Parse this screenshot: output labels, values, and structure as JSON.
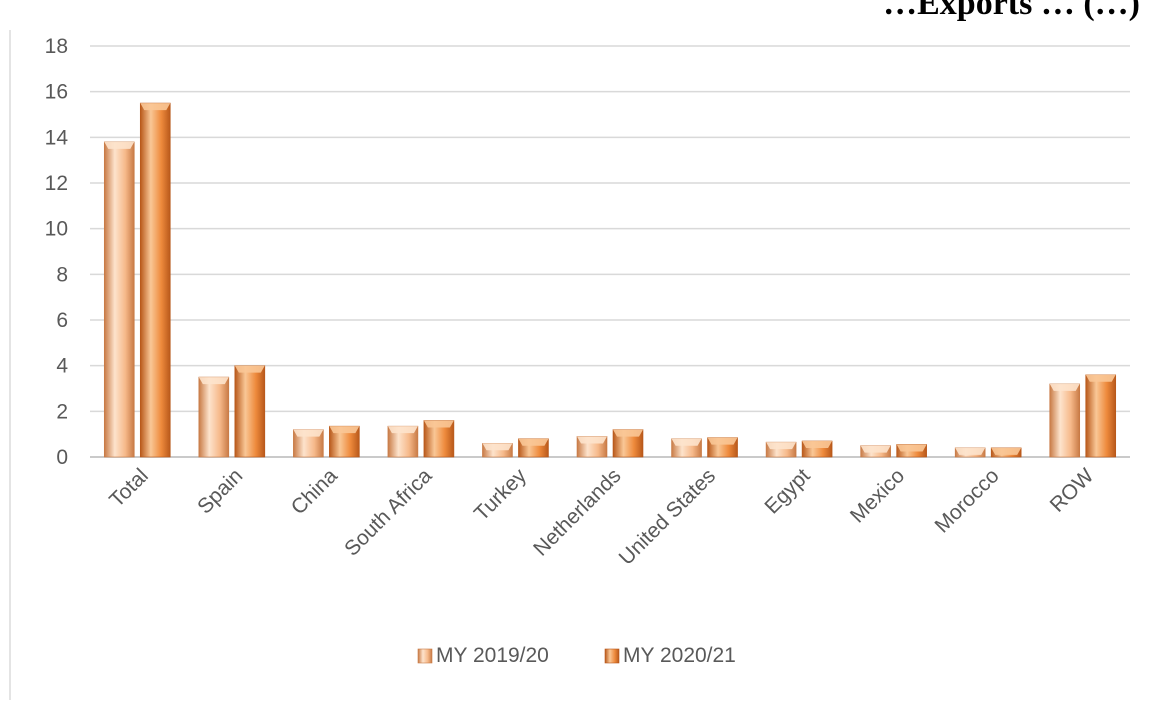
{
  "colors": {
    "series1": "#f6b98a",
    "series2": "#ee8a3c",
    "series1_light": "#fde3cc",
    "series2_light": "#f9c796",
    "series1_dark": "#c87a45",
    "series2_dark": "#b8581a",
    "grid": "#d9d9d9",
    "text": "#595959"
  },
  "chart_data": {
    "type": "bar",
    "title": "…Exports … (…)",
    "categories": [
      "Total",
      "Spain",
      "China",
      "South Africa",
      "Turkey",
      "Netherlands",
      "United States",
      "Egypt",
      "Mexico",
      "Morocco",
      "ROW"
    ],
    "series": [
      {
        "name": "MY 2019/20",
        "values": [
          13.8,
          3.5,
          1.2,
          1.35,
          0.6,
          0.9,
          0.8,
          0.65,
          0.5,
          0.4,
          3.2
        ]
      },
      {
        "name": "MY 2020/21",
        "values": [
          15.5,
          4.0,
          1.35,
          1.6,
          0.8,
          1.2,
          0.85,
          0.7,
          0.55,
          0.4,
          3.6
        ]
      }
    ],
    "xlabel": "",
    "ylabel": "",
    "ylim": [
      0,
      18
    ],
    "yticks": [
      0,
      2,
      4,
      6,
      8,
      10,
      12,
      14,
      16,
      18
    ],
    "grid": true,
    "legend": "bottom"
  }
}
